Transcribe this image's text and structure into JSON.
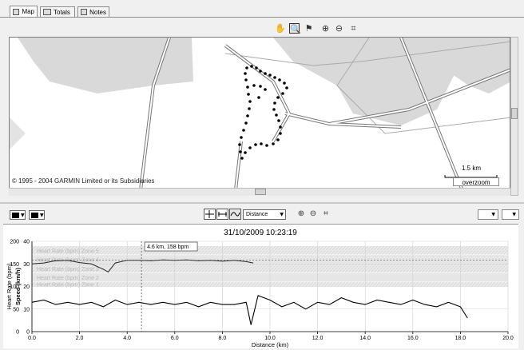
{
  "tabs": [
    {
      "label": "Map",
      "active": true
    },
    {
      "label": "Totals",
      "active": false
    },
    {
      "label": "Notes",
      "active": false
    }
  ],
  "map": {
    "copyright": "© 1995 - 2004 GARMIN Limited or its Subsidiaries",
    "scale_label": "1.5 km",
    "overzoom_label": "overzoom"
  },
  "chart_toolbar": {
    "x_axis_select": "Distance"
  },
  "chart_data": {
    "type": "line",
    "title": "31/10/2009 10:23:19",
    "xlabel": "Distance (km)",
    "ylabel_left": "Heart Rate (bpm)",
    "ylabel_right": "Speed (km/h)",
    "xlim": [
      0,
      20
    ],
    "ylim_left": [
      0,
      200
    ],
    "ylim_right": [
      0,
      40
    ],
    "x_ticks": [
      "0.0",
      "2.0",
      "4.0",
      "6.0",
      "8.0",
      "10.0",
      "12.0",
      "14.0",
      "16.0",
      "18.0",
      "20.0"
    ],
    "y_ticks_left": [
      "0",
      "50",
      "100",
      "150",
      "200"
    ],
    "y_ticks_right": [
      "0",
      "10",
      "20",
      "30",
      "40"
    ],
    "zones": [
      {
        "label": "Heart Rate (bpm) Zone 5",
        "from": 170,
        "to": 190
      },
      {
        "label": "Heart Rate (bpm) Zone 4",
        "from": 150,
        "to": 170
      },
      {
        "label": "Heart Rate (bpm) Zone 3",
        "from": 130,
        "to": 150
      },
      {
        "label": "Heart Rate (bpm) Zone 2",
        "from": 110,
        "to": 130
      },
      {
        "label": "Heart Rate (bpm) Zone 1",
        "from": 100,
        "to": 110
      }
    ],
    "cursor": {
      "x": 4.6,
      "label": "4.6 km, 158 bpm"
    },
    "series": [
      {
        "name": "Heart Rate (bpm)",
        "color": "#222222",
        "x": [
          0.0,
          0.5,
          1.0,
          1.5,
          2.0,
          2.5,
          3.0,
          3.2,
          3.5,
          4.0,
          4.5,
          5.0,
          5.5,
          6.0,
          6.5,
          7.0,
          7.5,
          8.0,
          8.5,
          9.0,
          9.3
        ],
        "values": [
          150,
          152,
          157,
          158,
          153,
          150,
          138,
          132,
          152,
          158,
          158,
          157,
          159,
          158,
          159,
          157,
          158,
          156,
          158,
          155,
          152
        ]
      },
      {
        "name": "Speed (km/h)",
        "color": "#000000",
        "x": [
          0.0,
          0.5,
          1.0,
          1.5,
          2.0,
          2.5,
          3.0,
          3.5,
          4.0,
          4.5,
          5.0,
          5.5,
          6.0,
          6.5,
          7.0,
          7.5,
          8.0,
          8.5,
          9.0,
          9.2,
          9.5,
          10.0,
          10.5,
          11.0,
          11.5,
          12.0,
          12.5,
          13.0,
          13.5,
          14.0,
          14.5,
          15.0,
          15.5,
          16.0,
          16.5,
          17.0,
          17.5,
          18.0,
          18.3
        ],
        "values": [
          13,
          14,
          12,
          13,
          12,
          13,
          11,
          14,
          12,
          13,
          12,
          13,
          12,
          13,
          11,
          13,
          12,
          12,
          13,
          3,
          16,
          14,
          11,
          13,
          10,
          13,
          12,
          15,
          13,
          12,
          14,
          13,
          12,
          14,
          12,
          11,
          13,
          11,
          6
        ]
      }
    ]
  }
}
